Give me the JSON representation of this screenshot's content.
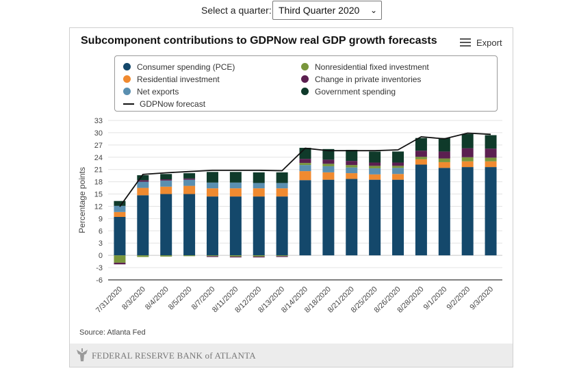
{
  "selector": {
    "label": "Select a quarter:",
    "selected": "Third Quarter 2020"
  },
  "export_label": "Export",
  "source": "Source: Atlanta Fed",
  "footer_logo": "FEDERAL RESERVE BANK of ATLANTA",
  "chart_data": {
    "type": "bar",
    "stacked": true,
    "title": "Subcomponent contributions to GDPNow real GDP growth forecasts",
    "ylabel": "Percentage points",
    "xlabel": "",
    "ylim": [
      -6,
      33
    ],
    "yticks": [
      -6,
      -3,
      0,
      3,
      6,
      9,
      12,
      15,
      18,
      21,
      24,
      27,
      30,
      33
    ],
    "grid": "horizontal",
    "legend_position": "top",
    "categories": [
      "7/31/2020",
      "8/3/2020",
      "8/4/2020",
      "8/5/2020",
      "8/7/2020",
      "8/11/2020",
      "8/12/2020",
      "8/13/2020",
      "8/14/2020",
      "8/18/2020",
      "8/21/2020",
      "8/25/2020",
      "8/26/2020",
      "8/28/2020",
      "9/1/2020",
      "9/2/2020",
      "9/3/2020"
    ],
    "series": [
      {
        "name": "Consumer spending (PCE)",
        "color": "#14486b",
        "values": [
          9.4,
          14.7,
          15.0,
          15.0,
          14.4,
          14.4,
          14.4,
          14.4,
          18.4,
          18.5,
          18.7,
          18.5,
          18.5,
          22.2,
          21.4,
          21.6,
          21.6
        ]
      },
      {
        "name": "Residential investment",
        "color": "#f08a30",
        "values": [
          1.2,
          1.8,
          1.8,
          2.0,
          2.0,
          2.0,
          2.0,
          2.0,
          2.2,
          1.8,
          1.4,
          1.3,
          1.4,
          1.3,
          1.4,
          1.4,
          1.4
        ]
      },
      {
        "name": "Net exports",
        "color": "#5a8fb0",
        "values": [
          1.5,
          1.5,
          1.5,
          1.5,
          1.4,
          1.4,
          1.3,
          1.3,
          1.5,
          1.5,
          1.4,
          1.5,
          1.5,
          0,
          0,
          0,
          0
        ]
      },
      {
        "name": "Nonresidential fixed investment",
        "color": "#79963c",
        "values": [
          -1.8,
          -0.4,
          -0.3,
          -0.2,
          -0.2,
          -0.3,
          -0.3,
          -0.2,
          0.5,
          0.6,
          0.6,
          0.6,
          0.5,
          0.6,
          0.9,
          1.0,
          0.9
        ]
      },
      {
        "name": "Change in private inventories",
        "color": "#5b1f50",
        "values": [
          -0.4,
          0.4,
          0.3,
          0.3,
          -0.2,
          -0.2,
          -0.2,
          -0.2,
          1.0,
          1.0,
          1.0,
          0.8,
          0.8,
          1.5,
          1.7,
          2.2,
          2.2
        ]
      },
      {
        "name": "Government spending",
        "color": "#0f3a2a",
        "values": [
          1.2,
          1.2,
          1.3,
          1.3,
          2.6,
          2.6,
          2.6,
          2.6,
          2.7,
          2.6,
          2.7,
          2.7,
          2.7,
          3.1,
          3.3,
          3.5,
          3.3
        ]
      }
    ],
    "line": {
      "name": "GDPNow forecast",
      "color": "#111111",
      "values": [
        11.9,
        19.8,
        20.2,
        20.5,
        20.8,
        20.8,
        20.8,
        20.7,
        26.2,
        25.6,
        25.6,
        25.6,
        25.8,
        29.0,
        28.5,
        29.9,
        29.6
      ]
    }
  }
}
